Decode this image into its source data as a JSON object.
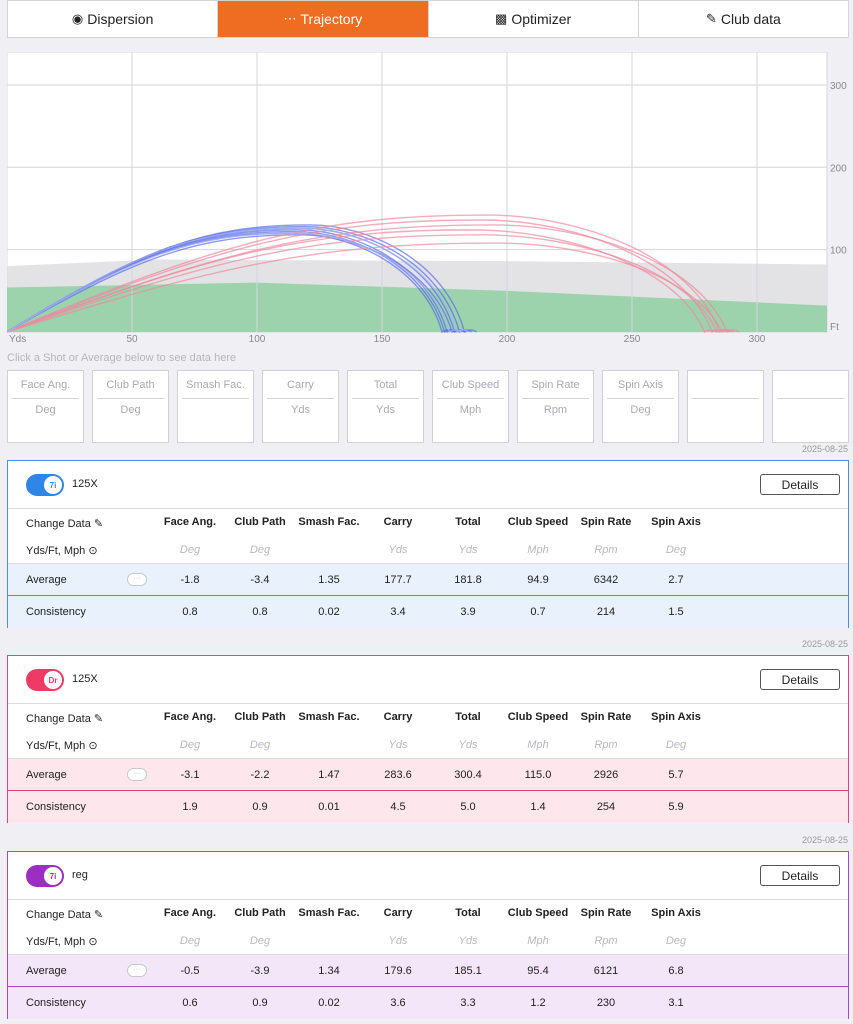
{
  "tabs": [
    {
      "label": "Dispersion",
      "icon": "dispersion-icon",
      "active": false
    },
    {
      "label": "Trajectory",
      "icon": "trajectory-icon",
      "active": true
    },
    {
      "label": "Optimizer",
      "icon": "optimizer-icon",
      "active": false
    },
    {
      "label": "Club data",
      "icon": "club-icon",
      "active": false
    }
  ],
  "chart_data": {
    "type": "line",
    "xlabel": "Yds",
    "ylabel": "Ft",
    "xlim": [
      0,
      328
    ],
    "ylim": [
      0,
      340
    ],
    "x_ticks": [
      50,
      100,
      150,
      200,
      250,
      300
    ],
    "y_ticks": [
      100,
      200,
      300
    ],
    "grid": true,
    "dispersion_bands": [
      {
        "name": "carry-band",
        "color": "#8fd0a2",
        "upper": [
          [
            0,
            54
          ],
          [
            100,
            60
          ],
          [
            200,
            50
          ],
          [
            328,
            32
          ]
        ]
      },
      {
        "name": "total-band",
        "color": "#dedee2",
        "upper": [
          [
            0,
            80
          ],
          [
            60,
            88
          ],
          [
            200,
            86
          ],
          [
            328,
            82
          ]
        ]
      }
    ],
    "series": [
      {
        "color": "#5a6ee8",
        "shots": [
          {
            "carry": 181,
            "apex": 128,
            "apex_x": 119
          },
          {
            "carry": 176,
            "apex": 124,
            "apex_x": 116
          },
          {
            "carry": 179,
            "apex": 126,
            "apex_x": 118
          },
          {
            "carry": 174,
            "apex": 120,
            "apex_x": 114
          },
          {
            "carry": 183,
            "apex": 130,
            "apex_x": 121
          },
          {
            "carry": 178,
            "apex": 118,
            "apex_x": 117
          },
          {
            "carry": 175,
            "apex": 122,
            "apex_x": 115
          }
        ]
      },
      {
        "color": "#ec8aa0",
        "shots": [
          {
            "carry": 285,
            "apex": 142,
            "apex_x": 192
          },
          {
            "carry": 282,
            "apex": 136,
            "apex_x": 190
          },
          {
            "carry": 288,
            "apex": 130,
            "apex_x": 195
          },
          {
            "carry": 279,
            "apex": 124,
            "apex_x": 186
          },
          {
            "carry": 284,
            "apex": 118,
            "apex_x": 190
          },
          {
            "carry": 286,
            "apex": 108,
            "apex_x": 196
          }
        ]
      },
      {
        "color": "#a8b4f2",
        "shots": [
          {
            "carry": 180,
            "apex": 126,
            "apex_x": 117
          },
          {
            "carry": 177,
            "apex": 120,
            "apex_x": 115
          }
        ]
      }
    ]
  },
  "hint": "Click a Shot or Average below to see data here",
  "metric_boxes": [
    {
      "label": "Face Ang.",
      "unit": "Deg"
    },
    {
      "label": "Club Path",
      "unit": "Deg"
    },
    {
      "label": "Smash Fac.",
      "unit": ""
    },
    {
      "label": "Carry",
      "unit": "Yds"
    },
    {
      "label": "Total",
      "unit": "Yds"
    },
    {
      "label": "Club Speed",
      "unit": "Mph"
    },
    {
      "label": "Spin Rate",
      "unit": "Rpm"
    },
    {
      "label": "Spin Axis",
      "unit": "Deg"
    },
    {
      "label": "",
      "unit": ""
    },
    {
      "label": "",
      "unit": ""
    }
  ],
  "columns": [
    {
      "label": "Face Ang.",
      "unit": "Deg"
    },
    {
      "label": "Club Path",
      "unit": "Deg"
    },
    {
      "label": "Smash Fac.",
      "unit": ""
    },
    {
      "label": "Carry",
      "unit": "Yds"
    },
    {
      "label": "Total",
      "unit": "Yds"
    },
    {
      "label": "Club Speed",
      "unit": "Mph"
    },
    {
      "label": "Spin Rate",
      "unit": "Rpm"
    },
    {
      "label": "Spin Axis",
      "unit": "Deg"
    }
  ],
  "change_data_label": "Change Data",
  "units_label": "Yds/Ft, Mph",
  "details_label": "Details",
  "average_label": "Average",
  "consistency_label": "Consistency",
  "panels": [
    {
      "date": "2025-08-25",
      "club": "7i",
      "name": "125X",
      "accent": "#2f86e8",
      "average": [
        "-1.8",
        "-3.4",
        "1.35",
        "177.7",
        "181.8",
        "94.9",
        "6342",
        "2.7"
      ],
      "consistency": [
        "0.8",
        "0.8",
        "0.02",
        "3.4",
        "3.9",
        "0.7",
        "214",
        "1.5"
      ]
    },
    {
      "date": "2025-08-25",
      "club": "Dr",
      "name": "125X",
      "accent": "#ee3a64",
      "average": [
        "-3.1",
        "-2.2",
        "1.47",
        "283.6",
        "300.4",
        "115.0",
        "2926",
        "5.7"
      ],
      "consistency": [
        "1.9",
        "0.9",
        "0.01",
        "4.5",
        "5.0",
        "1.4",
        "254",
        "5.9"
      ]
    },
    {
      "date": "2025-08-25",
      "club": "7i",
      "name": "reg",
      "accent": "#9a2fc1",
      "average": [
        "-0.5",
        "-3.9",
        "1.34",
        "179.6",
        "185.1",
        "95.4",
        "6121",
        "6.8"
      ],
      "consistency": [
        "0.6",
        "0.9",
        "0.02",
        "3.6",
        "3.3",
        "1.2",
        "230",
        "3.1"
      ]
    }
  ]
}
